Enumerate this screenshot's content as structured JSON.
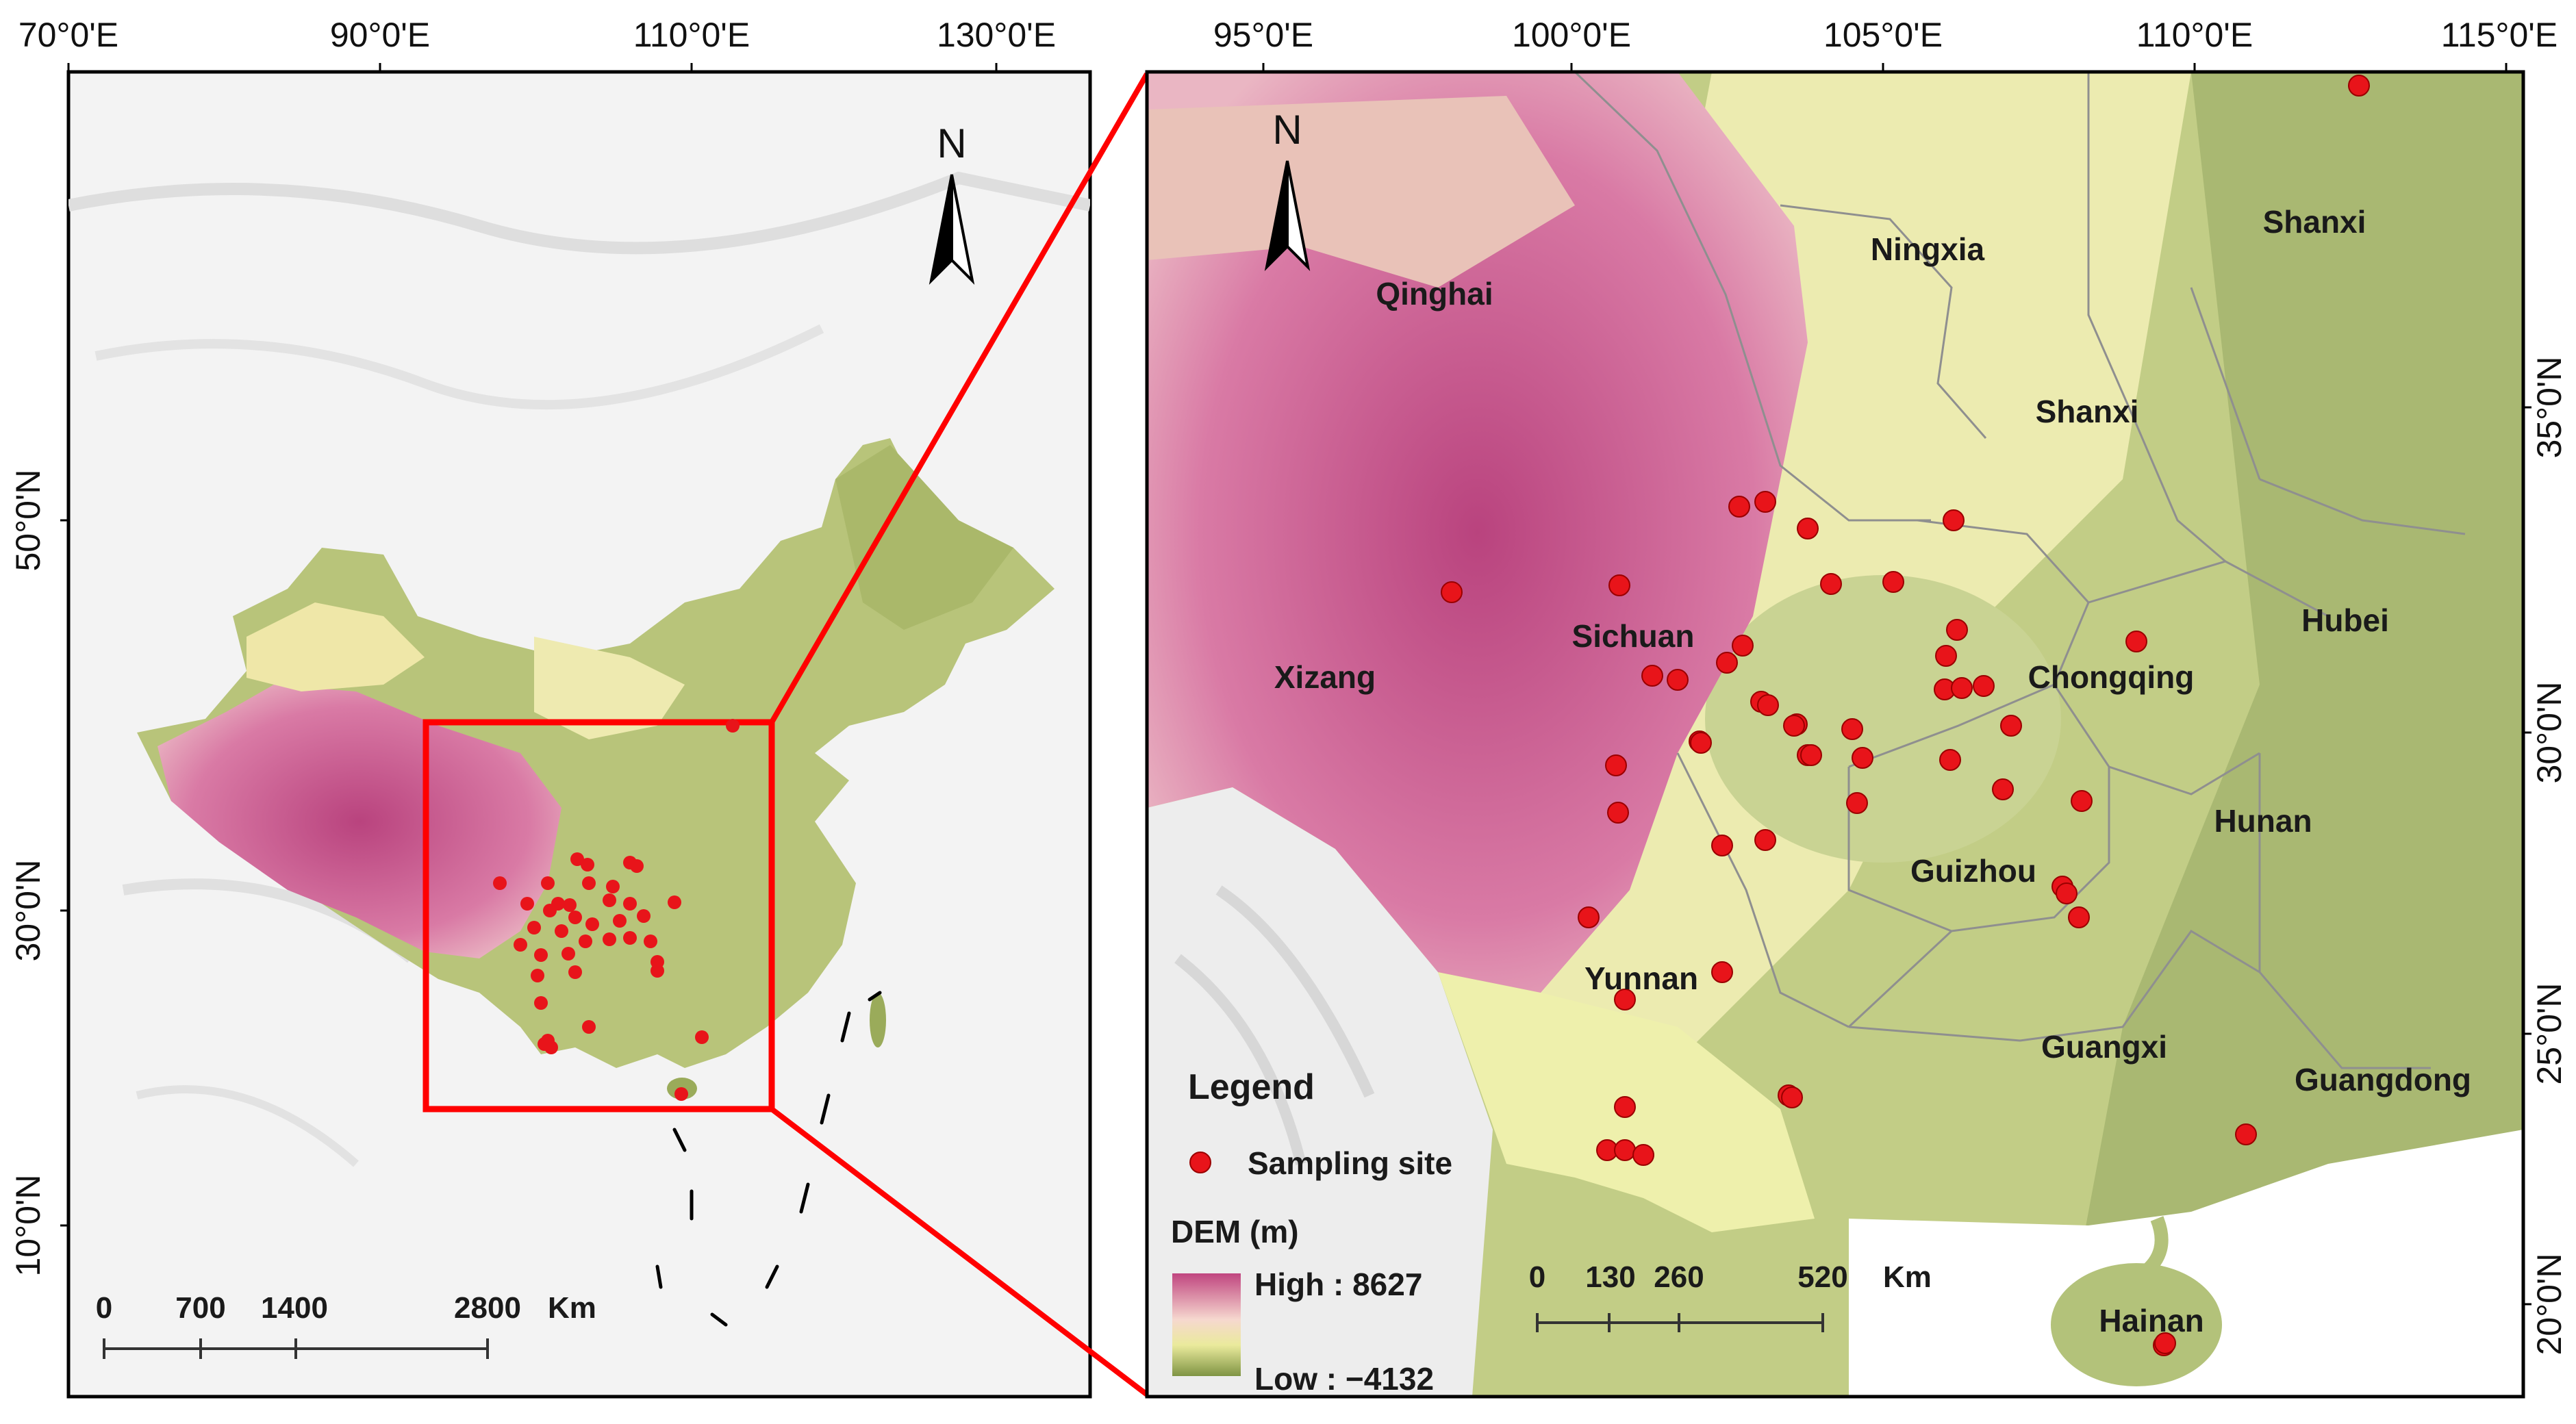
{
  "left_map": {
    "lon_labels": [
      "70°0'E",
      "90°0'E",
      "110°0'E",
      "130°0'E"
    ],
    "lat_labels": [
      "50°0'N",
      "30°0'N",
      "10°0'N"
    ],
    "north_label": "N",
    "scale": {
      "labels": [
        "0",
        "700",
        "1400",
        "2800"
      ],
      "unit": "Km"
    }
  },
  "right_map": {
    "lon_labels": [
      "95°0'E",
      "100°0'E",
      "105°0'E",
      "110°0'E",
      "115°0'E"
    ],
    "lat_labels": [
      "35°0'N",
      "30°0'N",
      "25°0'N",
      "20°0'N"
    ],
    "north_label": "N",
    "provinces": [
      "Qinghai",
      "Ningxia",
      "Shanxi",
      "Shanxi",
      "Sichuan",
      "Xizang",
      "Chongqing",
      "Hubei",
      "Hunan",
      "Guizhou",
      "Yunnan",
      "Guangxi",
      "Guangdong",
      "Hainan"
    ],
    "legend": {
      "title": "Legend",
      "site_label": "Sampling site",
      "dem_title": "DEM (m)",
      "high_label": "High : 8627",
      "low_label": "Low :  −4132"
    },
    "scale": {
      "labels": [
        "0",
        "130",
        "260",
        "520"
      ],
      "unit": "Km"
    }
  },
  "colors": {
    "dem_high": "#c0457f",
    "dem_mid": "#f4e6b2",
    "dem_low": "#8a9a4a",
    "site": "#e8141a",
    "frame": "#ff0000"
  }
}
